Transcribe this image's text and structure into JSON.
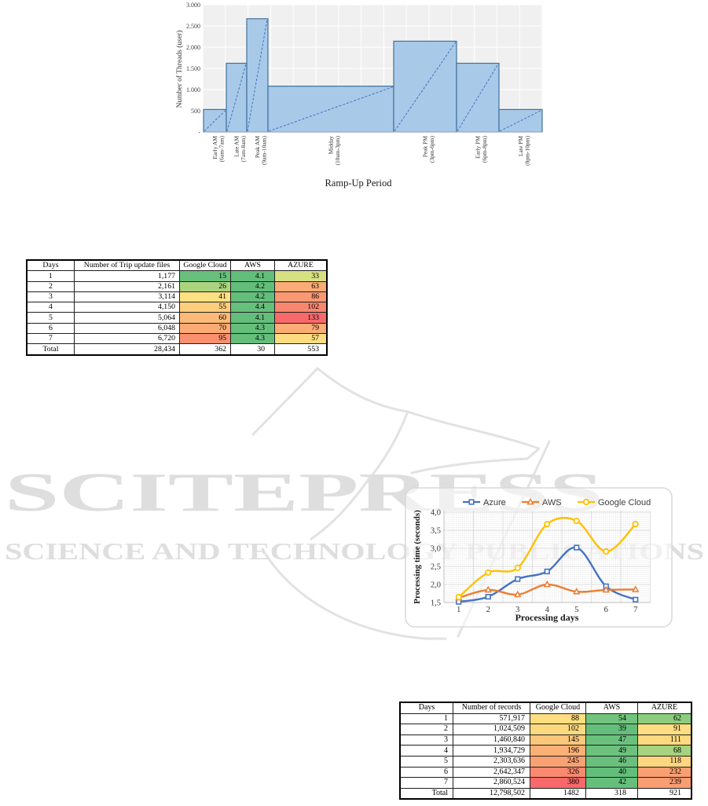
{
  "watermark": {
    "line1": "SCITEPRESS",
    "line2": "SCIENCE AND TECHNOLOGY PUBLICATIONS",
    "color": "#dedede",
    "stroke_color": "#e2e2e2"
  },
  "chart_data": [
    {
      "type": "bar",
      "title": "",
      "xlabel": "Ramp-Up Period",
      "ylabel": "Number of Threads (user)",
      "categories": [
        {
          "name": "Early AM",
          "range": "(6am-7am)"
        },
        {
          "name": "Late AM",
          "range": "(7am-8am)"
        },
        {
          "name": "Peak AM",
          "range": "(9am-10am)"
        },
        {
          "name": "Midday",
          "range": "(10am-3pm)"
        },
        {
          "name": "Peak PM",
          "range": "(3pm-6pm)"
        },
        {
          "name": "Early PM",
          "range": "(6pm-8pm)"
        },
        {
          "name": "Late PM",
          "range": "(8pm-10pm)"
        }
      ],
      "values": [
        530,
        1620,
        2670,
        1080,
        2140,
        1620,
        530
      ],
      "ylim": [
        0,
        3000
      ],
      "ytick_labels": [
        "3.000",
        "2.500",
        "2.000",
        "1.500",
        "1.000",
        "500",
        "-"
      ],
      "ytick_values": [
        3000,
        2500,
        2000,
        1500,
        1000,
        500,
        0
      ],
      "grid": true,
      "bar_fill": "#a8c9e8",
      "bar_stroke": "#41719c",
      "ramp_line_color": "#4472c4"
    },
    {
      "type": "line",
      "title": "",
      "xlabel": "Processing days",
      "ylabel": "Processing time (seconds)",
      "x": [
        1,
        2,
        3,
        4,
        5,
        6,
        7
      ],
      "xtick_labels": [
        "1",
        "2",
        "3",
        "4",
        "5",
        "6",
        "7"
      ],
      "ytick_labels": [
        "4,0",
        "3,5",
        "3,0",
        "2,5",
        "2,0",
        "1,5"
      ],
      "ytick_values": [
        4.0,
        3.5,
        3.0,
        2.5,
        2.0,
        1.5
      ],
      "ylim": [
        1.5,
        4.0
      ],
      "grid": true,
      "legend_position": "top",
      "series": [
        {
          "name": "Azure",
          "color": "#4472c4",
          "marker": "square",
          "values": [
            1.52,
            1.66,
            2.15,
            2.36,
            3.02,
            1.95,
            1.58
          ]
        },
        {
          "name": "AWS",
          "color": "#ed7d31",
          "marker": "triangle",
          "values": [
            1.63,
            1.85,
            1.72,
            2.0,
            1.8,
            1.85,
            1.86
          ]
        },
        {
          "name": "Google Cloud",
          "color": "#ffc000",
          "marker": "circle",
          "values": [
            1.65,
            2.33,
            2.46,
            3.67,
            3.76,
            2.91,
            3.67
          ]
        }
      ]
    }
  ],
  "tables": {
    "trip_files": {
      "headers": [
        "Days",
        "Number of Trip update files",
        "Google Cloud",
        "AWS",
        "AZURE"
      ],
      "rows": [
        {
          "cells": [
            "1",
            "1,177",
            "15",
            "4.1",
            "33"
          ],
          "colors": [
            null,
            null,
            "#68c07c",
            "#63be7b",
            "#d7e182"
          ]
        },
        {
          "cells": [
            "2",
            "2,161",
            "26",
            "4.2",
            "63"
          ],
          "colors": [
            null,
            null,
            "#aad480",
            "#63be7b",
            "#fbab75"
          ]
        },
        {
          "cells": [
            "3",
            "3,114",
            "41",
            "4.2",
            "86"
          ],
          "colors": [
            null,
            null,
            "#fee182",
            "#63be7b",
            "#fa9872"
          ]
        },
        {
          "cells": [
            "4",
            "4,150",
            "55",
            "4.4",
            "102"
          ],
          "colors": [
            null,
            null,
            "#fdce7d",
            "#66bf7c",
            "#f9866f"
          ]
        },
        {
          "cells": [
            "5",
            "5,064",
            "60",
            "4.1",
            "133"
          ],
          "colors": [
            null,
            null,
            "#fcb977",
            "#63be7b",
            "#f8696b"
          ]
        },
        {
          "cells": [
            "6",
            "6,048",
            "70",
            "4.3",
            "79"
          ],
          "colors": [
            null,
            null,
            "#fbab75",
            "#65bf7b",
            "#fbad76"
          ]
        },
        {
          "cells": [
            "7",
            "6,720",
            "95",
            "4.3",
            "57"
          ],
          "colors": [
            null,
            null,
            "#f9906f",
            "#65bf7b",
            "#fedd81"
          ]
        }
      ],
      "total": {
        "cells": [
          "Total",
          "28,434",
          "362",
          "30",
          "553"
        ]
      }
    },
    "records": {
      "headers": [
        "Days",
        "Number of records",
        "Google Cloud",
        "AWS",
        "AZURE"
      ],
      "rows": [
        {
          "cells": [
            "1",
            "571,917",
            "88",
            "54",
            "62"
          ],
          "colors": [
            null,
            null,
            "#fede80",
            "#72c37d",
            "#8ccc7f"
          ]
        },
        {
          "cells": [
            "2",
            "1,024,509",
            "102",
            "39",
            "91"
          ],
          "colors": [
            null,
            null,
            "#fdd97e",
            "#63be7b",
            "#fede81"
          ]
        },
        {
          "cells": [
            "3",
            "1,460,840",
            "145",
            "47",
            "111"
          ],
          "colors": [
            null,
            null,
            "#fcc77b",
            "#6ac17c",
            "#fdda7f"
          ]
        },
        {
          "cells": [
            "4",
            "1,934,729",
            "196",
            "49",
            "68"
          ],
          "colors": [
            null,
            null,
            "#fbb176",
            "#6cc17d",
            "#a5d37f"
          ]
        },
        {
          "cells": [
            "5",
            "2,303,636",
            "245",
            "46",
            "118"
          ],
          "colors": [
            null,
            null,
            "#faa173",
            "#68c07c",
            "#fdd67e"
          ]
        },
        {
          "cells": [
            "6",
            "2,642,347",
            "326",
            "40",
            "232"
          ],
          "colors": [
            null,
            null,
            "#f98a6f",
            "#64be7b",
            "#f99f72"
          ]
        },
        {
          "cells": [
            "7",
            "2,860,524",
            "380",
            "42",
            "239"
          ],
          "colors": [
            null,
            null,
            "#f8696b",
            "#65bf7b",
            "#f99d72"
          ]
        }
      ],
      "total": {
        "cells": [
          "Total",
          "12,798,502",
          "1482",
          "318",
          "921"
        ]
      }
    }
  }
}
